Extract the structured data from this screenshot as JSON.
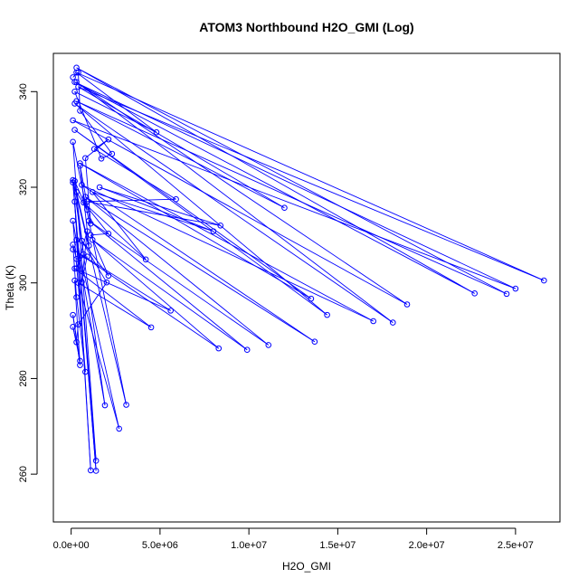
{
  "chart_data": {
    "type": "line",
    "title": "ATOM3 Northbound H2O_GMI (Log)",
    "xlabel": "H2O_GMI",
    "ylabel": "Theta (K)",
    "xlim": [
      -1000000,
      27500000
    ],
    "ylim": [
      250,
      348
    ],
    "x_ticks": [
      0,
      5000000,
      10000000,
      15000000,
      20000000,
      25000000
    ],
    "x_tick_labels": [
      "0.0e+00",
      "5.0e+06",
      "1.0e+07",
      "1.5e+07",
      "2.0e+07",
      "2.5e+07"
    ],
    "y_ticks": [
      260,
      280,
      300,
      320,
      340
    ],
    "y_tick_labels": [
      "260",
      "280",
      "300",
      "320",
      "340"
    ],
    "grid": false,
    "legend": "none",
    "color": "#0000ff",
    "marker": "open-circle",
    "series": [
      {
        "points": [
          [
            100000,
            343
          ],
          [
            400000,
            344
          ],
          [
            500000,
            336
          ],
          [
            2300000,
            327
          ],
          [
            1700000,
            326
          ],
          [
            200000,
            340
          ],
          [
            4800000,
            331.5
          ],
          [
            300000,
            344
          ],
          [
            26600000,
            300.5
          ],
          [
            400000,
            341
          ],
          [
            12000000,
            315.7
          ],
          [
            300000,
            338
          ],
          [
            24500000,
            297.7
          ],
          [
            300000,
            345
          ],
          [
            22700000,
            297.8
          ],
          [
            200000,
            342
          ],
          [
            25000000,
            298.8
          ],
          [
            100000,
            334
          ],
          [
            18900000,
            295.5
          ],
          [
            300000,
            342
          ],
          [
            18100000,
            291.7
          ],
          [
            200000,
            337.5
          ],
          [
            14400000,
            293.3
          ],
          [
            200000,
            332
          ],
          [
            13500000,
            296.7
          ],
          [
            500000,
            325
          ],
          [
            17000000,
            292
          ],
          [
            600000,
            320.5
          ],
          [
            13700000,
            287.7
          ],
          [
            800000,
            318
          ],
          [
            11100000,
            287
          ],
          [
            1000000,
            313
          ],
          [
            9900000,
            286
          ],
          [
            1200000,
            309
          ],
          [
            8300000,
            286.3
          ],
          [
            100000,
            307
          ],
          [
            5600000,
            294.2
          ],
          [
            200000,
            303
          ],
          [
            4500000,
            290.7
          ],
          [
            400000,
            300
          ],
          [
            2700000,
            269.5
          ],
          [
            300000,
            309
          ],
          [
            1100000,
            260.8
          ],
          [
            200000,
            317
          ],
          [
            1400000,
            260.7
          ],
          [
            100000,
            321
          ],
          [
            1400000,
            262.8
          ],
          [
            100000,
            329.5
          ],
          [
            3100000,
            274.5
          ],
          [
            100000,
            321.5
          ],
          [
            1900000,
            274.4
          ],
          [
            100000,
            313
          ],
          [
            800000,
            281.4
          ],
          [
            200000,
            300.5
          ],
          [
            500000,
            282.8
          ],
          [
            100000,
            293.3
          ],
          [
            500000,
            283.7
          ],
          [
            100000,
            290.8
          ],
          [
            300000,
            287.6
          ],
          [
            400000,
            291.3
          ],
          [
            2000000,
            300.1
          ],
          [
            600000,
            308.8
          ],
          [
            2100000,
            301.5
          ],
          [
            1100000,
            310
          ],
          [
            2100000,
            310.3
          ],
          [
            700000,
            316.8
          ],
          [
            4200000,
            304.9
          ],
          [
            1200000,
            319
          ],
          [
            8000000,
            310.8
          ],
          [
            1600000,
            320
          ],
          [
            8400000,
            312
          ],
          [
            900000,
            317
          ],
          [
            5900000,
            317.5
          ],
          [
            1300000,
            328
          ],
          [
            2100000,
            330
          ],
          [
            800000,
            326.1
          ],
          [
            1100000,
            312.4
          ],
          [
            500000,
            324.5
          ],
          [
            1000000,
            307.8
          ],
          [
            300000,
            319
          ],
          [
            900000,
            315.3
          ],
          [
            200000,
            321.3
          ],
          [
            700000,
            306
          ],
          [
            300000,
            303
          ],
          [
            900000,
            310.8
          ],
          [
            600000,
            300.2
          ],
          [
            900000,
            305.5
          ],
          [
            300000,
            305
          ],
          [
            100000,
            308
          ],
          [
            300000,
            297
          ]
        ]
      }
    ]
  }
}
